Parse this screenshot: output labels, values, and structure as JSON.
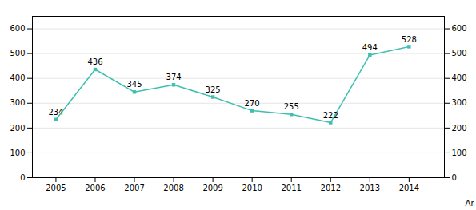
{
  "chart_data": {
    "type": "line",
    "x": [
      2005,
      2006,
      2007,
      2008,
      2009,
      2010,
      2011,
      2012,
      2013,
      2014
    ],
    "values": [
      234,
      436,
      345,
      374,
      325,
      270,
      255,
      222,
      494,
      528
    ],
    "color": "#3dbfb0",
    "marker": "square",
    "xlabel": "Ar",
    "xlim": [
      2004.4,
      2014.9
    ],
    "xticks": [
      2005,
      2006,
      2007,
      2008,
      2009,
      2010,
      2011,
      2012,
      2013,
      2014
    ],
    "ylim": [
      0,
      650
    ],
    "yticks": [
      0,
      100,
      200,
      300,
      400,
      500,
      600
    ],
    "y2lim": [
      0,
      650
    ],
    "y2ticks": [
      0,
      100,
      200,
      300,
      400,
      500,
      600
    ],
    "grid": true,
    "data_labels": true
  }
}
